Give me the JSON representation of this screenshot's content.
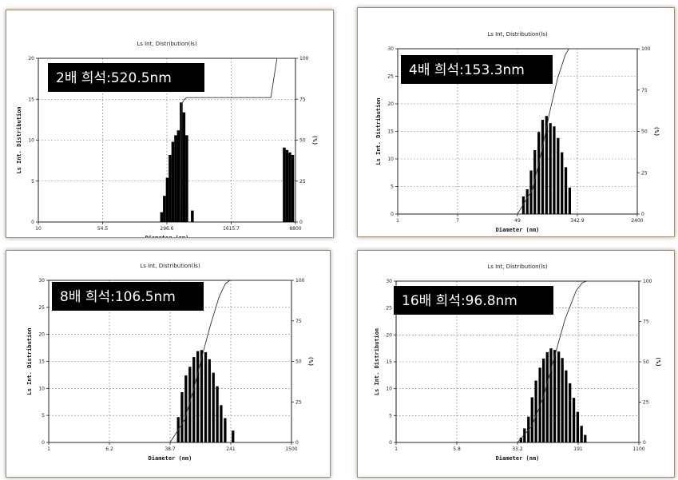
{
  "chart_data": [
    {
      "type": "bar",
      "title": "Ls Int, Distribution(ls)",
      "annotation": "2배 희석:520.5nm",
      "xlabel": "Diameter (nm)",
      "ylabel": "Ls Int. Distribution",
      "y2label": "(%)",
      "scale": "log",
      "x_ticks": [
        "10",
        "54.5",
        "296.6",
        "1615.7",
        "8800"
      ],
      "y_ticks": [
        "0",
        "5",
        "10",
        "15",
        "20"
      ],
      "y2_ticks": [
        "0",
        "25",
        "50",
        "75",
        "100"
      ],
      "ylim": [
        0,
        20
      ],
      "bars": [
        {
          "x": 260,
          "value": 1.2
        },
        {
          "x": 280,
          "value": 3.2
        },
        {
          "x": 302,
          "value": 5.4
        },
        {
          "x": 325,
          "value": 8.2
        },
        {
          "x": 350,
          "value": 9.8
        },
        {
          "x": 377,
          "value": 10.6
        },
        {
          "x": 405,
          "value": 11.2
        },
        {
          "x": 436,
          "value": 14.6
        },
        {
          "x": 469,
          "value": 13.4
        },
        {
          "x": 505,
          "value": 10.6
        },
        {
          "x": 585,
          "value": 1.4
        },
        {
          "x": 6600,
          "value": 9.1
        },
        {
          "x": 7100,
          "value": 8.8
        },
        {
          "x": 7650,
          "value": 8.5
        },
        {
          "x": 8250,
          "value": 8.2
        }
      ],
      "cumulative": [
        [
          420,
          0
        ],
        [
          436,
          72
        ],
        [
          470,
          75
        ],
        [
          500,
          76
        ],
        [
          1300,
          76
        ],
        [
          4600,
          76
        ],
        [
          5400,
          100
        ],
        [
          8800,
          100
        ]
      ]
    },
    {
      "type": "bar",
      "title": "Ls Int, Distribution(ls)",
      "annotation": "4배 희석:153.3nm",
      "xlabel": "Diameter (nm)",
      "ylabel": "Ls Int. Distribution",
      "y2label": "(%)",
      "scale": "log",
      "x_ticks": [
        "1",
        "7",
        "49",
        "342.9",
        "2400"
      ],
      "y_ticks": [
        "0",
        "5",
        "10",
        "15",
        "20",
        "25",
        "30"
      ],
      "y2_ticks": [
        "0",
        "25",
        "50",
        "75",
        "100"
      ],
      "ylim": [
        0,
        30
      ],
      "bars": [
        {
          "x": 60,
          "value": 3.2
        },
        {
          "x": 68,
          "value": 4.5
        },
        {
          "x": 77,
          "value": 7.9
        },
        {
          "x": 87,
          "value": 11.6
        },
        {
          "x": 99,
          "value": 14.9
        },
        {
          "x": 112,
          "value": 17.1
        },
        {
          "x": 127,
          "value": 17.8
        },
        {
          "x": 144,
          "value": 16.5
        },
        {
          "x": 163,
          "value": 15.9
        },
        {
          "x": 185,
          "value": 13.8
        },
        {
          "x": 210,
          "value": 11.2
        },
        {
          "x": 238,
          "value": 8.5
        },
        {
          "x": 270,
          "value": 4.8
        }
      ],
      "cumulative": [
        [
          49,
          0
        ],
        [
          80,
          15
        ],
        [
          110,
          40
        ],
        [
          140,
          62
        ],
        [
          180,
          82
        ],
        [
          230,
          96
        ],
        [
          260,
          100
        ],
        [
          2400,
          100
        ]
      ]
    },
    {
      "type": "bar",
      "title": "Ls Int, Distribution(ls)",
      "annotation": "8배 희석:106.5nm",
      "xlabel": "Diameter (nm)",
      "ylabel": "Ls Int. Distribution",
      "y2label": "(%)",
      "scale": "log",
      "x_ticks": [
        "1",
        "6.2",
        "38.7",
        "241",
        "1500"
      ],
      "y_ticks": [
        "0",
        "5",
        "10",
        "15",
        "20",
        "25",
        "30"
      ],
      "y2_ticks": [
        "0",
        "25",
        "50",
        "75",
        "100"
      ],
      "ylim": [
        0,
        30
      ],
      "bars": [
        {
          "x": 50,
          "value": 4.7
        },
        {
          "x": 56,
          "value": 9.3
        },
        {
          "x": 63,
          "value": 12.4
        },
        {
          "x": 71,
          "value": 14.0
        },
        {
          "x": 80,
          "value": 15.8
        },
        {
          "x": 90,
          "value": 16.9
        },
        {
          "x": 101,
          "value": 17.1
        },
        {
          "x": 114,
          "value": 16.7
        },
        {
          "x": 128,
          "value": 15.4
        },
        {
          "x": 144,
          "value": 12.9
        },
        {
          "x": 162,
          "value": 10.4
        },
        {
          "x": 182,
          "value": 6.9
        },
        {
          "x": 205,
          "value": 4.5
        },
        {
          "x": 260,
          "value": 2.2
        }
      ],
      "cumulative": [
        [
          38.7,
          0
        ],
        [
          60,
          14
        ],
        [
          80,
          34
        ],
        [
          100,
          52
        ],
        [
          130,
          72
        ],
        [
          170,
          90
        ],
        [
          205,
          98
        ],
        [
          235,
          100
        ],
        [
          1500,
          100
        ]
      ]
    },
    {
      "type": "bar",
      "title": "Ls Int, Distribution(ls)",
      "annotation": "16배 희석:96.8nm",
      "xlabel": "Diameter (nm)",
      "ylabel": "Ls Int. Distribution",
      "y2label": "(%)",
      "scale": "log",
      "x_ticks": [
        "1",
        "5.8",
        "33.2",
        "191",
        "1100"
      ],
      "y_ticks": [
        "0",
        "5",
        "10",
        "15",
        "20",
        "25",
        "30"
      ],
      "y2_ticks": [
        "0",
        "25",
        "50",
        "75",
        "100"
      ],
      "ylim": [
        0,
        30
      ],
      "bars": [
        {
          "x": 37,
          "value": 0.9
        },
        {
          "x": 41,
          "value": 2.6
        },
        {
          "x": 46,
          "value": 4.8
        },
        {
          "x": 51,
          "value": 8.4
        },
        {
          "x": 57,
          "value": 11.5
        },
        {
          "x": 64,
          "value": 13.9
        },
        {
          "x": 71,
          "value": 15.6
        },
        {
          "x": 79,
          "value": 16.8
        },
        {
          "x": 88,
          "value": 17.5
        },
        {
          "x": 98,
          "value": 17.2
        },
        {
          "x": 110,
          "value": 16.9
        },
        {
          "x": 122,
          "value": 15.7
        },
        {
          "x": 136,
          "value": 13.4
        },
        {
          "x": 152,
          "value": 11.0
        },
        {
          "x": 170,
          "value": 8.3
        },
        {
          "x": 190,
          "value": 5.7
        },
        {
          "x": 212,
          "value": 3.1
        },
        {
          "x": 236,
          "value": 1.4
        }
      ],
      "cumulative": [
        [
          33.2,
          0
        ],
        [
          50,
          10
        ],
        [
          70,
          28
        ],
        [
          95,
          52
        ],
        [
          130,
          76
        ],
        [
          180,
          94
        ],
        [
          215,
          99
        ],
        [
          245,
          100
        ],
        [
          1100,
          100
        ]
      ]
    }
  ]
}
